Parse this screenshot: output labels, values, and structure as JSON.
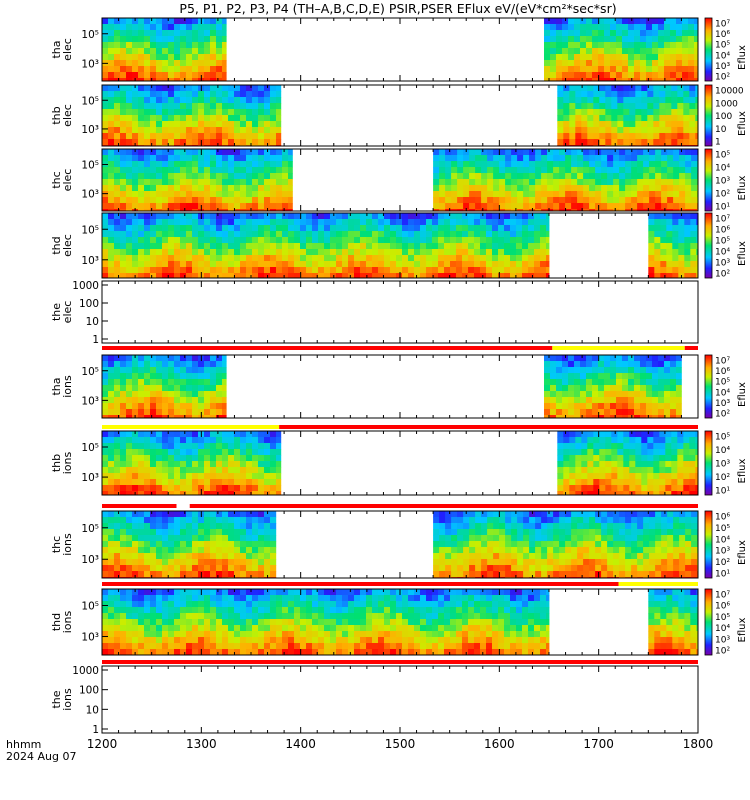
{
  "title": "P5, P1, P2, P3, P4 (TH–A,B,C,D,E) PSIR,PSER EFlux eV/(eV*cm²*sec*sr)",
  "time_axis_label": "hhmm",
  "date_label": "2024 Aug 07",
  "colors": {
    "data_gap": "#ffffff",
    "flag_red": "#ff0000",
    "flag_yellow": "#ffff00",
    "flag_black": "#000000",
    "axis": "#000000"
  },
  "chart_data": {
    "type": "heatmap",
    "x_axis": {
      "unit": "hhmm",
      "range": [
        "1200",
        "1800"
      ],
      "tick_labels": [
        "1200",
        "1300",
        "1400",
        "1500",
        "1600",
        "1700",
        "1800"
      ]
    },
    "colormap": "rainbow (purple-blue-cyan-green-yellow-red)",
    "panels": [
      {
        "ylabel": [
          "tha",
          "elec"
        ],
        "y_tick_labels": [
          "10⁵",
          "10³"
        ],
        "colorbar_label": "Eflux",
        "colorbar_tick_labels": [
          "10⁷",
          "10⁶",
          "10⁵",
          "10⁴",
          "10³",
          "10²"
        ],
        "data_intervals": [
          [
            "1200",
            "1315"
          ],
          [
            "1587",
            "1800"
          ]
        ]
      },
      {
        "ylabel": [
          "thb",
          "elec"
        ],
        "y_tick_labels": [
          "10⁵",
          "10³"
        ],
        "colorbar_label": "Eflux",
        "colorbar_tick_labels": [
          "10000",
          "1000",
          "100",
          "10",
          "1"
        ],
        "data_intervals": [
          [
            "1200",
            "1348"
          ],
          [
            "1635",
            "1800"
          ]
        ]
      },
      {
        "ylabel": [
          "thc",
          "elec"
        ],
        "y_tick_labels": [
          "10⁵",
          "10³"
        ],
        "colorbar_label": "Eflux",
        "colorbar_tick_labels": [
          "10⁵",
          "10⁴",
          "10³",
          "10²",
          "10¹"
        ],
        "data_intervals": [
          [
            "1200",
            "1355"
          ],
          [
            "1520",
            "1800"
          ]
        ]
      },
      {
        "ylabel": [
          "thd",
          "elec"
        ],
        "y_tick_labels": [
          "10⁵",
          "10³"
        ],
        "colorbar_label": "Eflux",
        "colorbar_tick_labels": [
          "10⁷",
          "10⁶",
          "10⁵",
          "10⁴",
          "10³",
          "10²"
        ],
        "data_intervals": [
          [
            "1200",
            "1630"
          ],
          [
            "1690",
            "1800"
          ]
        ]
      },
      {
        "ylabel": [
          "the",
          "elec"
        ],
        "y_tick_labels": [
          "1000",
          "100",
          "10",
          "1"
        ],
        "colorbar_label": "",
        "colorbar_tick_labels": [],
        "data_intervals": []
      },
      {
        "ylabel": [
          "tha",
          "ions"
        ],
        "y_tick_labels": [
          "10⁵",
          "10³"
        ],
        "colorbar_label": "Eflux",
        "colorbar_tick_labels": [
          "10⁷",
          "10⁶",
          "10⁵",
          "10⁴",
          "10³",
          "10²"
        ],
        "data_intervals": [
          [
            "1200",
            "1315"
          ],
          [
            "1587",
            "1750"
          ]
        ]
      },
      {
        "ylabel": [
          "thb",
          "ions"
        ],
        "y_tick_labels": [
          "10⁵",
          "10³"
        ],
        "colorbar_label": "Eflux",
        "colorbar_tick_labels": [
          "10⁵",
          "10⁴",
          "10³",
          "10²",
          "10¹"
        ],
        "data_intervals": [
          [
            "1200",
            "1348"
          ],
          [
            "1635",
            "1800"
          ]
        ]
      },
      {
        "ylabel": [
          "thc",
          "ions"
        ],
        "y_tick_labels": [
          "10⁵",
          "10³"
        ],
        "colorbar_label": "Eflux",
        "colorbar_tick_labels": [
          "10⁶",
          "10⁵",
          "10⁴",
          "10³",
          "10²",
          "10¹"
        ],
        "data_intervals": [
          [
            "1200",
            "1345"
          ],
          [
            "1520",
            "1800"
          ]
        ]
      },
      {
        "ylabel": [
          "thd",
          "ions"
        ],
        "y_tick_labels": [
          "10⁵",
          "10³"
        ],
        "colorbar_label": "Eflux",
        "colorbar_tick_labels": [
          "10⁷",
          "10⁶",
          "10⁵",
          "10⁴",
          "10³",
          "10²"
        ],
        "data_intervals": [
          [
            "1200",
            "1630"
          ],
          [
            "1690",
            "1800"
          ]
        ]
      },
      {
        "ylabel": [
          "the",
          "ions"
        ],
        "y_tick_labels": [
          "1000",
          "100",
          "10",
          "1"
        ],
        "colorbar_label": "",
        "colorbar_tick_labels": [],
        "data_intervals": []
      }
    ]
  }
}
